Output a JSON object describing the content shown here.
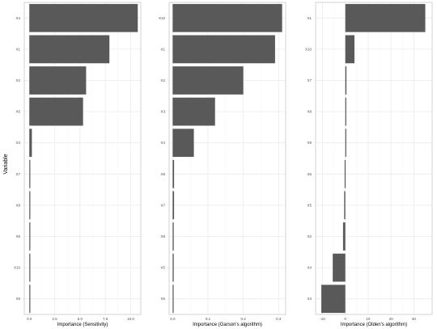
{
  "chart_data": [
    {
      "type": "bar",
      "orientation": "horizontal",
      "ylabel": "Variable",
      "xlabel": "Importance (Sensitivity)",
      "categories": [
        "X4",
        "X1",
        "X2",
        "X5",
        "X3",
        "X7",
        "X8",
        "X6",
        "X10",
        "X9"
      ],
      "values": [
        10.7,
        7.9,
        5.6,
        5.3,
        0.25,
        0.08,
        0.06,
        0.05,
        0.04,
        0.03
      ],
      "xlim": [
        -0.5,
        11.0
      ],
      "xticks": [
        0.0,
        2.5,
        5.0,
        7.5,
        10.0
      ],
      "xtick_labels": [
        "0.0",
        "2.5",
        "5.0",
        "7.5",
        "10.0"
      ],
      "grid": true
    },
    {
      "type": "bar",
      "orientation": "horizontal",
      "ylabel": "",
      "xlabel": "Importance (Garson's algorithm)",
      "categories": [
        "X10",
        "X1",
        "X2",
        "X3",
        "X4",
        "X9",
        "X7",
        "X8",
        "X5",
        "X6"
      ],
      "values": [
        0.31,
        0.29,
        0.2,
        0.12,
        0.06,
        0.004,
        0.004,
        0.003,
        0.003,
        0.002
      ],
      "xlim": [
        -0.01,
        0.32
      ],
      "xticks": [
        0.0,
        0.1,
        0.2,
        0.3
      ],
      "xtick_labels": [
        "0.0",
        "0.1",
        "0.2",
        "0.3"
      ],
      "grid": true
    },
    {
      "type": "bar",
      "orientation": "horizontal",
      "ylabel": "",
      "xlabel": "Importance (Olden's algorithm)",
      "categories": [
        "X1",
        "X10",
        "X7",
        "X8",
        "X9",
        "X6",
        "X5",
        "X2",
        "X4",
        "X3"
      ],
      "values": [
        35,
        4,
        0.5,
        0.4,
        0.3,
        -0.3,
        -0.5,
        -1,
        -5.5,
        -10.5
      ],
      "xlim": [
        -13,
        38
      ],
      "xticks": [
        -10,
        0,
        10,
        20,
        30
      ],
      "xtick_labels": [
        "-10",
        "0",
        "10",
        "20",
        "30"
      ],
      "grid": true
    }
  ],
  "colors": {
    "bar": "#595959",
    "panel_border": "#c8c8c8",
    "grid_major": "#ebebeb",
    "grid_minor": "#f5f5f5"
  }
}
